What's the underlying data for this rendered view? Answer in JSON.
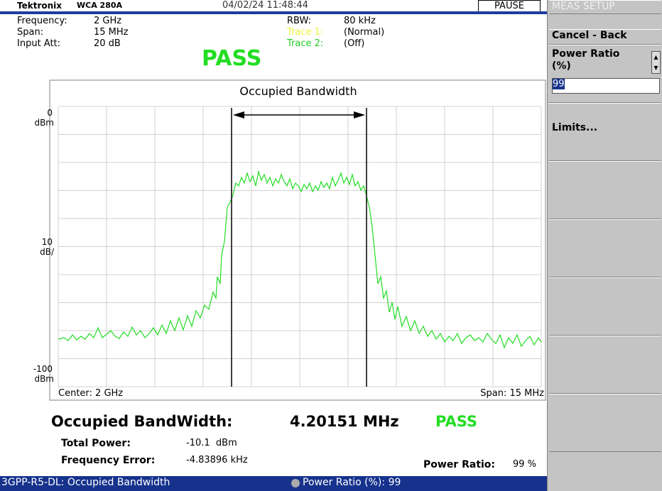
{
  "header": {
    "brand": "Tektronix",
    "model": "WCA 280A",
    "datetime": "04/02/24 11:48:44",
    "status": "PAUSE"
  },
  "settings": {
    "frequency": {
      "label": "Frequency:",
      "value": "2 GHz"
    },
    "span": {
      "label": "Span:",
      "value": "15 MHz"
    },
    "input_att": {
      "label": "Input Att:",
      "value": "20 dB"
    },
    "rbw": {
      "label": "RBW:",
      "value": "80 kHz"
    },
    "trace1": {
      "label": "Trace 1:",
      "value": "(Normal)"
    },
    "trace2": {
      "label": "Trace 2:",
      "value": "(Off)"
    }
  },
  "verdict": "PASS",
  "plot": {
    "title": "Occupied Bandwidth",
    "y_top": {
      "value": "0",
      "unit": "dBm"
    },
    "y_scale": {
      "value": "10",
      "unit": "dB/"
    },
    "y_bottom": {
      "value": "-100",
      "unit": "dBm"
    },
    "center": "Center: 2 GHz",
    "span": "Span: 15 MHz"
  },
  "results": {
    "obw_label": "Occupied BandWidth:",
    "obw_value": "4.20151 MHz",
    "obw_verdict": "PASS",
    "total_power": {
      "label": "Total Power:",
      "value": "-10.1  dBm"
    },
    "frequency_error": {
      "label": "Frequency Error:",
      "value": "-4.83896 kHz"
    },
    "power_ratio": {
      "label": "Power Ratio:",
      "value": "99 %"
    }
  },
  "status_bar": {
    "left": "3GPP-R5-DL: Occupied Bandwidth",
    "right": "Power Ratio (%): 99"
  },
  "side_menu": {
    "title": "MEAS SETUP",
    "items": [
      "Cancel - Back",
      "Power Ratio (%)",
      "Limits..."
    ],
    "input": "99"
  }
}
